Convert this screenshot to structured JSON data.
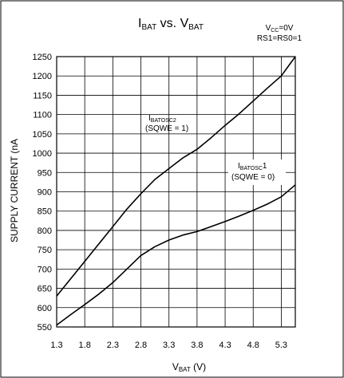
{
  "chart_data": {
    "type": "line",
    "title": {
      "main": "I",
      "main_sub": "BAT",
      "vs": " vs. ",
      "v": "V",
      "v_sub": "BAT"
    },
    "conditions": {
      "line1_main": "V",
      "line1_sub": "CC",
      "line1_rest": "=0V",
      "line2": "RS1=RS0=1"
    },
    "xlabel": {
      "main": "V",
      "sub": "BAT",
      "unit": " (V)"
    },
    "ylabel": "SUPPLY CURRENT (nA",
    "xlim": [
      1.3,
      5.55
    ],
    "ylim": [
      550,
      1250
    ],
    "xticks": [
      "1.3",
      "1.8",
      "2.3",
      "2.8",
      "3.3",
      "3.8",
      "4.3",
      "4.8",
      "5.3"
    ],
    "yticks": [
      "550",
      "600",
      "650",
      "700",
      "750",
      "800",
      "850",
      "900",
      "950",
      "1000",
      "1050",
      "1100",
      "1150",
      "1200",
      "1250"
    ],
    "grid": true,
    "series": [
      {
        "label_main": "I",
        "label_sub": "BATOSC2",
        "label_rest": "",
        "label_line2": "(SQWE = 1)",
        "color": "#000000",
        "x": [
          1.3,
          1.55,
          1.8,
          2.05,
          2.3,
          2.55,
          2.8,
          3.05,
          3.3,
          3.55,
          3.8,
          4.05,
          4.3,
          4.55,
          4.8,
          5.05,
          5.3,
          5.55
        ],
        "y": [
          630,
          675,
          720,
          765,
          810,
          855,
          895,
          932,
          960,
          988,
          1010,
          1040,
          1072,
          1102,
          1135,
          1168,
          1200,
          1250
        ]
      },
      {
        "label_main": "I",
        "label_sub": "BATOSC",
        "label_rest": "1",
        "label_line2": "(SQWE = 0)",
        "color": "#000000",
        "x": [
          1.3,
          1.55,
          1.8,
          2.05,
          2.3,
          2.55,
          2.8,
          3.05,
          3.3,
          3.55,
          3.8,
          4.05,
          4.3,
          4.55,
          4.8,
          5.05,
          5.3,
          5.55
        ],
        "y": [
          555,
          582,
          608,
          635,
          665,
          700,
          735,
          758,
          775,
          788,
          797,
          810,
          823,
          837,
          852,
          868,
          887,
          918
        ]
      }
    ]
  }
}
